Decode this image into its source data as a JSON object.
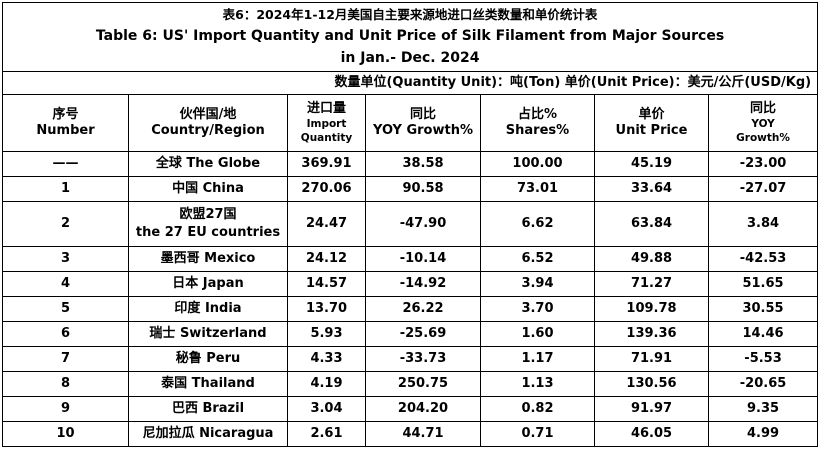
{
  "title": {
    "cn": "表6：2024年1-12月美国自主要来源地进口丝类数量和单价统计表",
    "en_line1": "Table 6: US' Import Quantity and Unit Price of Silk Filament from Major Sources",
    "en_line2": "in Jan.- Dec. 2024"
  },
  "unit_note": "数量单位(Quantity Unit)：吨(Ton)   单价(Unit Price)：美元/公斤(USD/Kg)",
  "headers": {
    "no_cn": "序号",
    "no_en": "Number",
    "country_cn": "伙伴国/地",
    "country_en": "Country/Region",
    "qty_cn": "进口量",
    "qty_en1": "Import",
    "qty_en2": "Quantity",
    "yoy_cn": "同比",
    "yoy_en": "YOY Growth%",
    "share_cn": "占比%",
    "share_en": "Shares%",
    "price_cn": "单价",
    "price_en": "Unit Price",
    "pyoy_cn": "同比",
    "pyoy_en1": "YOY",
    "pyoy_en2": "Growth%"
  },
  "rows": [
    {
      "no": "——",
      "country": "全球 The Globe",
      "qty": "369.91",
      "yoy": "38.58",
      "share": "100.00",
      "price": "45.19",
      "pyoy": "-23.00"
    },
    {
      "no": "1",
      "country": "中国 China",
      "qty": "270.06",
      "yoy": "90.58",
      "share": "73.01",
      "price": "33.64",
      "pyoy": "-27.07"
    },
    {
      "no": "2",
      "country_line1": "欧盟27国",
      "country_line2": "the 27 EU countries",
      "qty": "24.47",
      "yoy": "-47.90",
      "share": "6.62",
      "price": "63.84",
      "pyoy": "3.84"
    },
    {
      "no": "3",
      "country": "墨西哥 Mexico",
      "qty": "24.12",
      "yoy": "-10.14",
      "share": "6.52",
      "price": "49.88",
      "pyoy": "-42.53"
    },
    {
      "no": "4",
      "country": "日本 Japan",
      "qty": "14.57",
      "yoy": "-14.92",
      "share": "3.94",
      "price": "71.27",
      "pyoy": "51.65"
    },
    {
      "no": "5",
      "country": "印度 India",
      "qty": "13.70",
      "yoy": "26.22",
      "share": "3.70",
      "price": "109.78",
      "pyoy": "30.55"
    },
    {
      "no": "6",
      "country": "瑞士 Switzerland",
      "qty": "5.93",
      "yoy": "-25.69",
      "share": "1.60",
      "price": "139.36",
      "pyoy": "14.46"
    },
    {
      "no": "7",
      "country": "秘鲁 Peru",
      "qty": "4.33",
      "yoy": "-33.73",
      "share": "1.17",
      "price": "71.91",
      "pyoy": "-5.53"
    },
    {
      "no": "8",
      "country": "泰国 Thailand",
      "qty": "4.19",
      "yoy": "250.75",
      "share": "1.13",
      "price": "130.56",
      "pyoy": "-20.65"
    },
    {
      "no": "9",
      "country": "巴西 Brazil",
      "qty": "3.04",
      "yoy": "204.20",
      "share": "0.82",
      "price": "91.97",
      "pyoy": "9.35"
    },
    {
      "no": "10",
      "country": "尼加拉瓜 Nicaragua",
      "qty": "2.61",
      "yoy": "44.71",
      "share": "0.71",
      "price": "46.05",
      "pyoy": "4.99"
    }
  ]
}
